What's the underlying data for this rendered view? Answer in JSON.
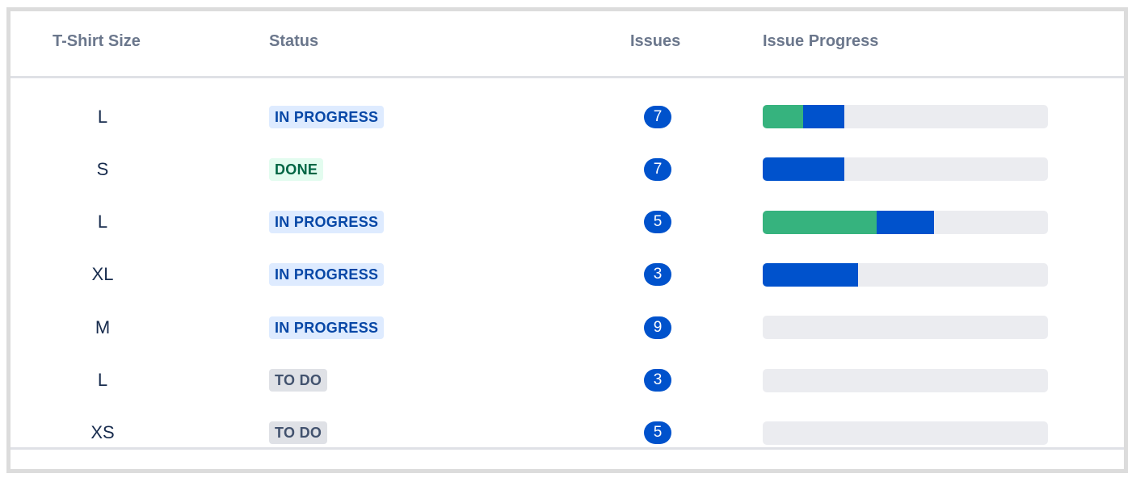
{
  "columns": {
    "size": "T-Shirt Size",
    "status": "Status",
    "issues": "Issues",
    "progress": "Issue Progress"
  },
  "colors": {
    "done_segment": "#36B37E",
    "in_progress_segment": "#0052CC",
    "track": "#EBECF0",
    "badge": "#0052CC"
  },
  "rows": [
    {
      "size": "L",
      "status": "IN PROGRESS",
      "status_kind": "inprogress",
      "issues": "7",
      "progress": {
        "done": 0.143,
        "in_progress": 0.143
      }
    },
    {
      "size": "S",
      "status": "DONE",
      "status_kind": "done",
      "issues": "7",
      "progress": {
        "done": 0,
        "in_progress": 0.286
      }
    },
    {
      "size": "L",
      "status": "IN PROGRESS",
      "status_kind": "inprogress",
      "issues": "5",
      "progress": {
        "done": 0.4,
        "in_progress": 0.2
      }
    },
    {
      "size": "XL",
      "status": "IN PROGRESS",
      "status_kind": "inprogress",
      "issues": "3",
      "progress": {
        "done": 0,
        "in_progress": 0.333
      }
    },
    {
      "size": "M",
      "status": "IN PROGRESS",
      "status_kind": "inprogress",
      "issues": "9",
      "progress": {
        "done": 0,
        "in_progress": 0
      }
    },
    {
      "size": "L",
      "status": "TO DO",
      "status_kind": "todo",
      "issues": "3",
      "progress": {
        "done": 0,
        "in_progress": 0
      }
    },
    {
      "size": "XS",
      "status": "TO DO",
      "status_kind": "todo",
      "issues": "5",
      "progress": {
        "done": 0,
        "in_progress": 0
      }
    }
  ]
}
